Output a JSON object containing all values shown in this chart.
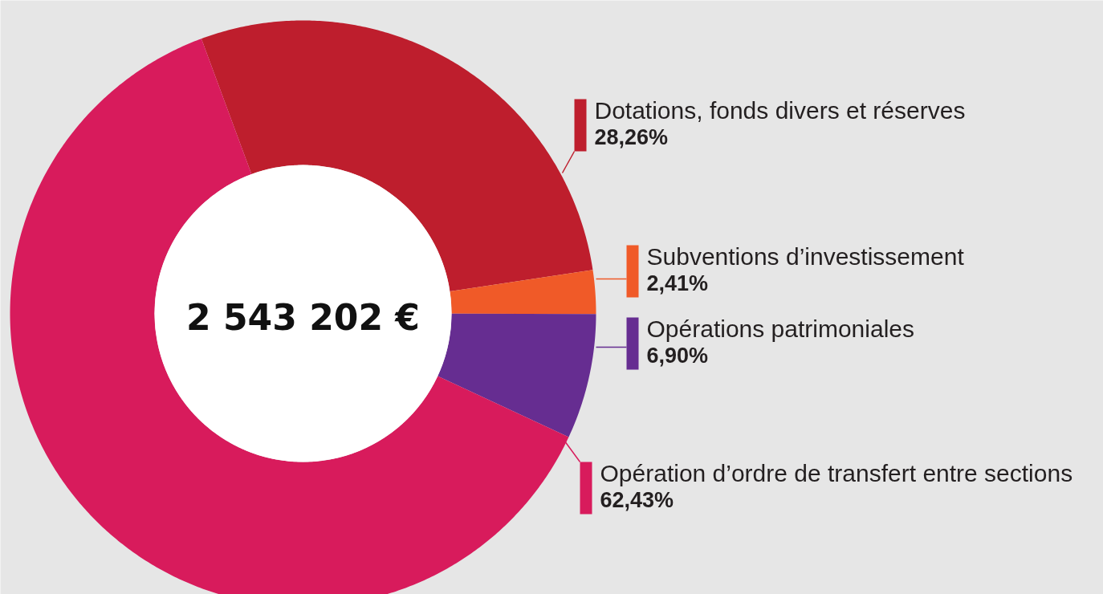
{
  "chart_data": {
    "type": "donut",
    "categories": [
      "Dotations, fonds divers et réserves",
      "Subventions d’investissement",
      "Opérations patrimoniales",
      "Opération d’ordre de transfert entre sections"
    ],
    "values": [
      28.26,
      2.41,
      6.9,
      62.43
    ],
    "colors": [
      "#be1e2d",
      "#f05a28",
      "#662d91",
      "#d81b5c"
    ],
    "value_labels": [
      "28,26%",
      "2,41%",
      "6,90%",
      "62,43%"
    ],
    "annotations": [
      "2 543 202 €"
    ],
    "legend": "right"
  }
}
